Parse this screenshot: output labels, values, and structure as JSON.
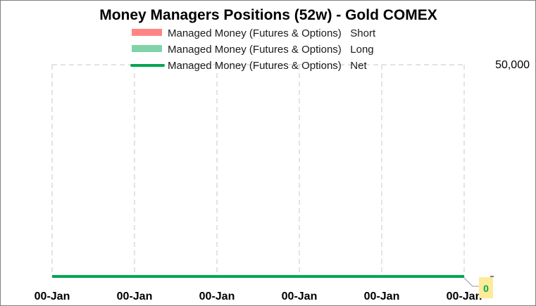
{
  "chart_data": {
    "type": "line",
    "title": "Money Managers Positions  (52w) - Gold COMEX",
    "legend": {
      "placement": "top",
      "entries": [
        {
          "name": "Managed Money (Futures & Options)   Short",
          "color": "#ff8585",
          "mark": "bar"
        },
        {
          "name": "Managed Money (Futures & Options)   Long",
          "color": "#80d4a8",
          "mark": "bar"
        },
        {
          "name": "Managed Money (Futures & Options)   Net",
          "color": "#00a651",
          "mark": "line"
        }
      ]
    },
    "categories": [
      "00-Jan",
      "00-Jan",
      "00-Jan",
      "00-Jan",
      "00-Jan",
      "00-Jan"
    ],
    "series": [
      {
        "name": "Managed Money (Futures & Options)   Net",
        "values": [
          0,
          0,
          0,
          0,
          0,
          0
        ],
        "color": "#00a651"
      }
    ],
    "ylim": [
      0,
      50000
    ],
    "yticks": [
      "50,000"
    ],
    "grid": true,
    "last_value_label": "0"
  }
}
